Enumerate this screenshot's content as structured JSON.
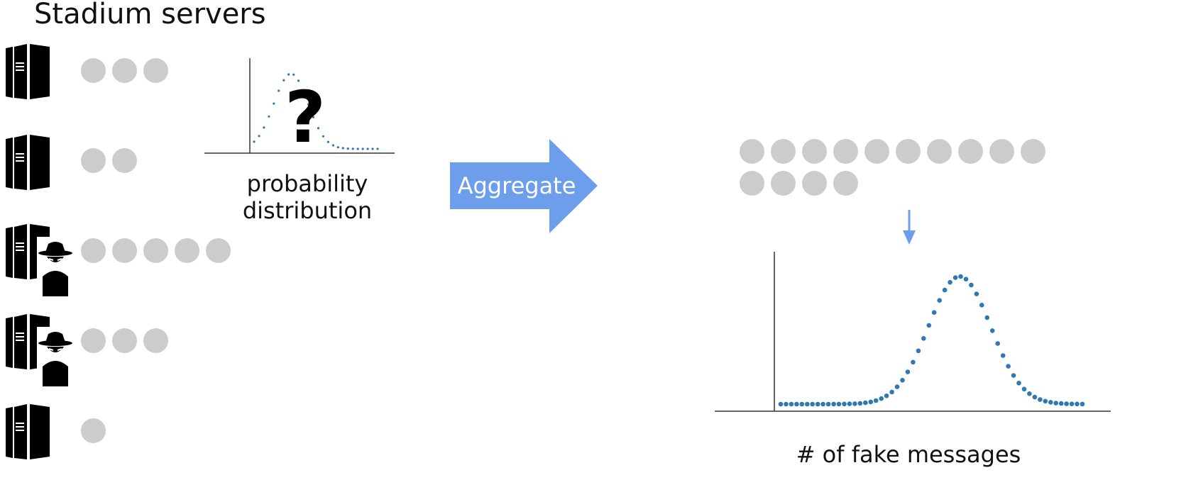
{
  "title": "Stadium servers",
  "servers": [
    {
      "adversary": false,
      "messages": 3
    },
    {
      "adversary": false,
      "messages": 2
    },
    {
      "adversary": true,
      "messages": 5
    },
    {
      "adversary": true,
      "messages": 3
    },
    {
      "adversary": false,
      "messages": 1
    }
  ],
  "small_chart": {
    "label_line1": "probability",
    "label_line2": "distribution",
    "overlay_symbol": "?"
  },
  "arrow": {
    "label": "Aggregate",
    "color": "#6d9eeb"
  },
  "aggregate": {
    "messages": 14
  },
  "big_chart": {
    "xlabel": "# of fake messages"
  },
  "colors": {
    "message_dot": "#cccccc",
    "point": "#2f78b4",
    "arrow": "#6d9eeb",
    "icon": "#000000"
  },
  "icons": [
    "server-icon",
    "spy-icon",
    "question-mark-icon",
    "down-arrow-icon"
  ]
}
